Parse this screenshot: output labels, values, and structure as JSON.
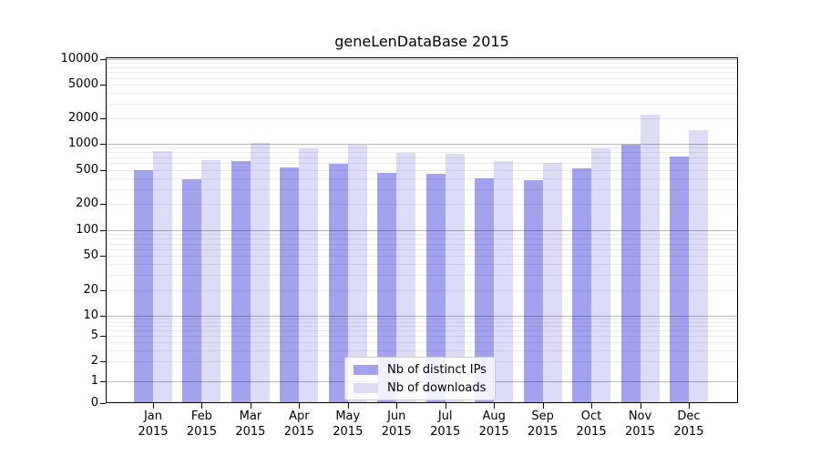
{
  "chart_data": {
    "type": "bar",
    "title": "geneLenDataBase 2015",
    "xlabel": "",
    "ylabel": "",
    "yscale": "symlog",
    "ylim": [
      0,
      10000
    ],
    "grid": true,
    "legend_position": "lower center",
    "y_tick_labels": [
      0,
      1,
      2,
      5,
      10,
      20,
      50,
      100,
      200,
      500,
      1000,
      2000,
      5000,
      10000
    ],
    "categories": [
      "Jan 2015",
      "Feb 2015",
      "Mar 2015",
      "Apr 2015",
      "May 2015",
      "Jun 2015",
      "Jul 2015",
      "Aug 2015",
      "Sep 2015",
      "Oct 2015",
      "Nov 2015",
      "Dec 2015"
    ],
    "series": [
      {
        "name": "Nb of distinct IPs",
        "key": "ips",
        "color": "#a2a2ee",
        "values": [
          490,
          390,
          630,
          535,
          590,
          465,
          445,
          400,
          380,
          525,
          975,
          705
        ]
      },
      {
        "name": "Nb of downloads",
        "key": "downloads",
        "color": "#dcdcf7",
        "values": [
          820,
          650,
          1020,
          890,
          980,
          780,
          770,
          630,
          600,
          890,
          2200,
          1450
        ]
      }
    ],
    "colors": {
      "grid_minor": "rgba(0,0,0,0.08)",
      "grid_major": "rgba(0,0,0,0.28)",
      "spine": "#000000",
      "background": "#ffffff",
      "text": "#000000"
    }
  }
}
